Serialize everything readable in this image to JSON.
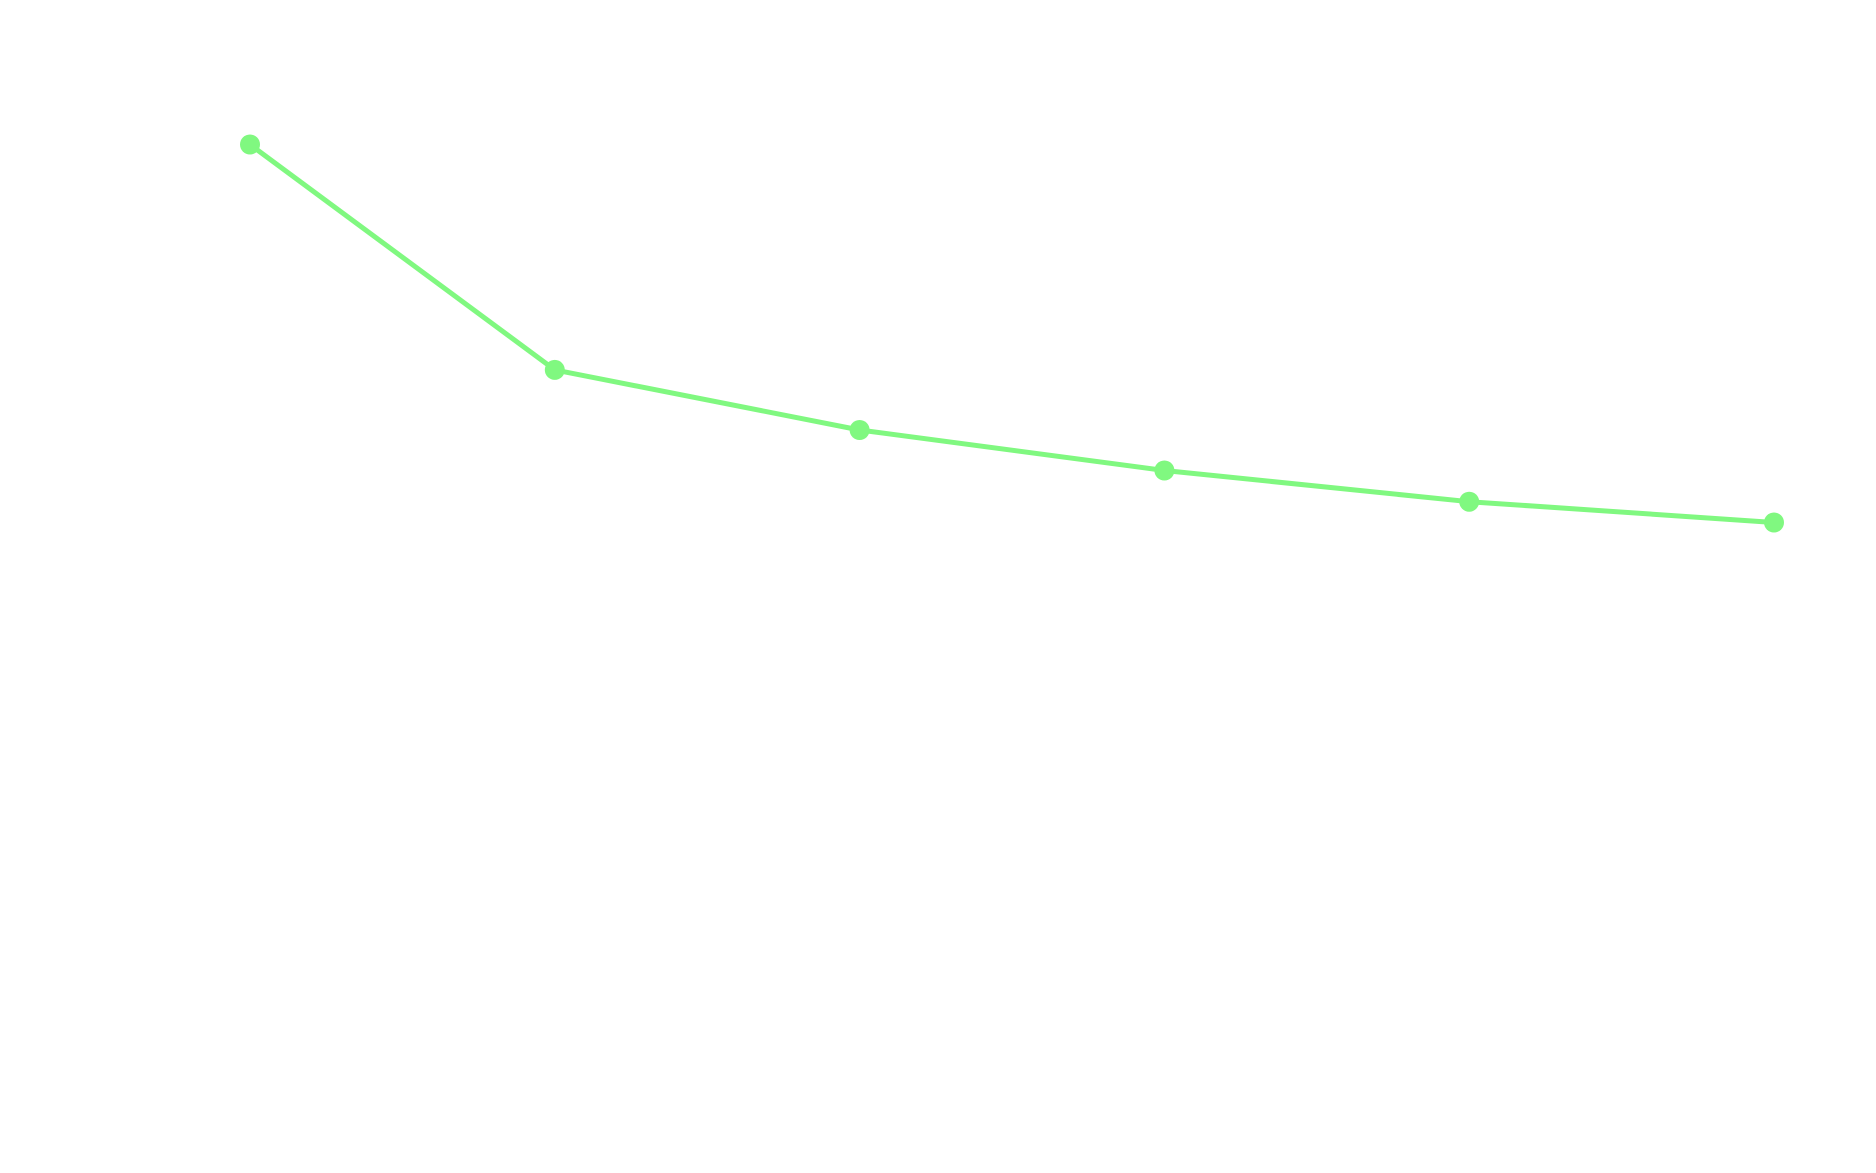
{
  "chart_data": {
    "type": "line",
    "title": "",
    "xlabel": "",
    "ylabel": "",
    "x": [
      1,
      2,
      3,
      4,
      5,
      6
    ],
    "xlim": [
      1,
      6
    ],
    "ylim": [
      0,
      100
    ],
    "grid": false,
    "legend": "none",
    "series": [
      {
        "values": [
          87.5,
          68.0,
          62.8,
          59.3,
          56.6,
          54.8
        ],
        "color": "#80f880"
      }
    ]
  }
}
